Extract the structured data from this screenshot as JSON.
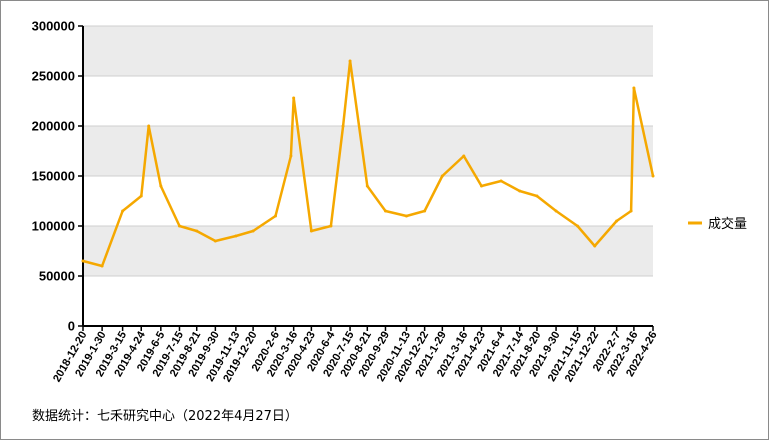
{
  "chart_data": {
    "type": "line",
    "title": "",
    "xlabel": "",
    "ylabel": "",
    "ylim": [
      0,
      300000
    ],
    "yticks": [
      0,
      50000,
      100000,
      150000,
      200000,
      250000,
      300000
    ],
    "ytick_labels": [
      "0",
      "50000",
      "100000",
      "150000",
      "200000",
      "250000",
      "300000"
    ],
    "grid": true,
    "legend_position": "right",
    "x_start": "2018-12-20",
    "x_end": "2022-04-26",
    "xtick_labels": [
      "2018-12-20",
      "2019-1-30",
      "2019-3-15",
      "2019-4-24",
      "2019-6-5",
      "2019-7-15",
      "2019-8-21",
      "2019-9-30",
      "2019-11-13",
      "2019-12-20",
      "2020-2-6",
      "2020-3-16",
      "2020-4-23",
      "2020-6-4",
      "2020-7-15",
      "2020-8-21",
      "2020-9-29",
      "2020-11-13",
      "2020-12-22",
      "2021-1-29",
      "2021-3-16",
      "2021-4-23",
      "2021-6-4",
      "2021-7-14",
      "2021-8-20",
      "2021-9-30",
      "2021-11-15",
      "2021-12-22",
      "2022-2-7",
      "2022-3-16",
      "2022-4-26"
    ],
    "series": [
      {
        "name": "成交量",
        "color": "#F5A800",
        "x": [
          "2018-12-20",
          "2019-1-30",
          "2019-3-15",
          "2019-4-24",
          "2019-5-10",
          "2019-6-5",
          "2019-7-15",
          "2019-8-21",
          "2019-9-30",
          "2019-11-13",
          "2019-12-20",
          "2020-2-6",
          "2020-3-10",
          "2020-3-16",
          "2020-4-23",
          "2020-6-4",
          "2020-6-30",
          "2020-7-15",
          "2020-8-21",
          "2020-9-29",
          "2020-11-13",
          "2020-12-22",
          "2021-1-29",
          "2021-3-16",
          "2021-4-23",
          "2021-6-4",
          "2021-7-14",
          "2021-8-20",
          "2021-9-30",
          "2021-11-15",
          "2021-12-22",
          "2022-2-7",
          "2022-3-10",
          "2022-3-16",
          "2022-4-26"
        ],
        "values": [
          65000,
          60000,
          115000,
          130000,
          200000,
          140000,
          100000,
          95000,
          85000,
          90000,
          95000,
          110000,
          170000,
          228000,
          95000,
          100000,
          200000,
          265000,
          140000,
          115000,
          110000,
          115000,
          150000,
          170000,
          140000,
          145000,
          135000,
          130000,
          115000,
          100000,
          80000,
          105000,
          115000,
          238000,
          150000
        ]
      }
    ]
  },
  "legend": {
    "label": "成交量"
  },
  "source_note": "数据统计：七禾研究中心（2022年4月27日）"
}
